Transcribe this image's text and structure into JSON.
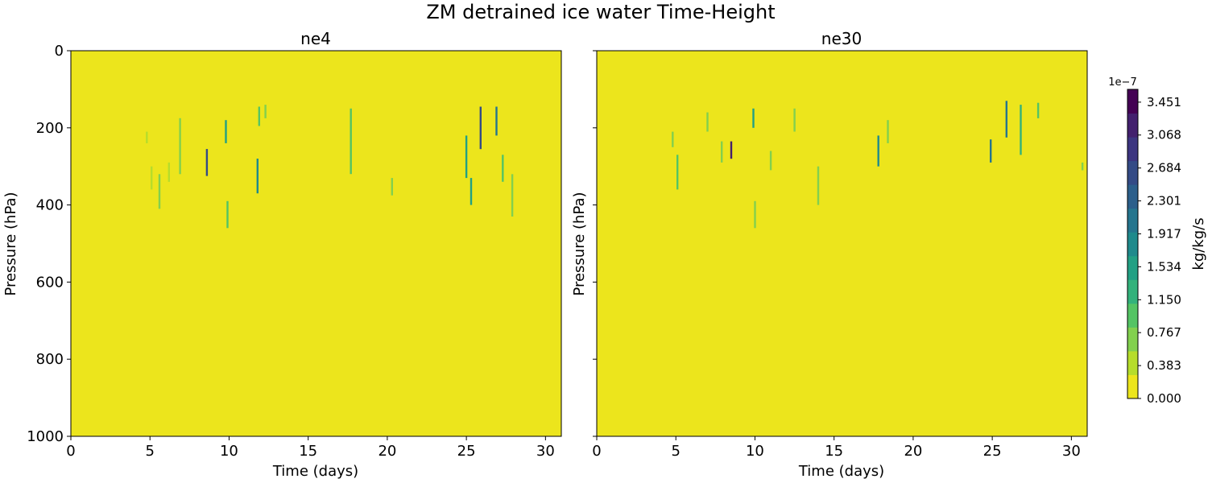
{
  "chart_data": {
    "type": "heatmap",
    "title": "ZM detrained ice water Time-Height",
    "panels": [
      {
        "title": "ne4",
        "xlabel": "Time (days)",
        "ylabel": "Pressure (hPa)",
        "xlim": [
          0,
          31
        ],
        "ylim": [
          1000,
          0
        ],
        "xticks": [
          "0",
          "5",
          "10",
          "15",
          "20",
          "25",
          "30"
        ],
        "yticks": [
          "0",
          "200",
          "400",
          "600",
          "800",
          "1000"
        ],
        "features": [
          {
            "day": 4.8,
            "p_top": 210,
            "p_bot": 240,
            "v": 0.4
          },
          {
            "day": 5.1,
            "p_top": 300,
            "p_bot": 360,
            "v": 0.5
          },
          {
            "day": 5.6,
            "p_top": 320,
            "p_bot": 410,
            "v": 0.6
          },
          {
            "day": 6.2,
            "p_top": 290,
            "p_bot": 340,
            "v": 0.4
          },
          {
            "day": 6.9,
            "p_top": 175,
            "p_bot": 320,
            "v": 0.8
          },
          {
            "day": 8.6,
            "p_top": 255,
            "p_bot": 325,
            "v": 2.7
          },
          {
            "day": 9.8,
            "p_top": 180,
            "p_bot": 240,
            "v": 1.4
          },
          {
            "day": 9.9,
            "p_top": 390,
            "p_bot": 460,
            "v": 1.0
          },
          {
            "day": 11.9,
            "p_top": 145,
            "p_bot": 195,
            "v": 0.9
          },
          {
            "day": 11.8,
            "p_top": 280,
            "p_bot": 370,
            "v": 1.8
          },
          {
            "day": 12.3,
            "p_top": 140,
            "p_bot": 175,
            "v": 0.7
          },
          {
            "day": 17.7,
            "p_top": 150,
            "p_bot": 320,
            "v": 1.1
          },
          {
            "day": 20.3,
            "p_top": 330,
            "p_bot": 375,
            "v": 0.8
          },
          {
            "day": 25.0,
            "p_top": 220,
            "p_bot": 330,
            "v": 1.6
          },
          {
            "day": 25.3,
            "p_top": 330,
            "p_bot": 400,
            "v": 1.4
          },
          {
            "day": 25.9,
            "p_top": 145,
            "p_bot": 255,
            "v": 2.5
          },
          {
            "day": 26.9,
            "p_top": 145,
            "p_bot": 220,
            "v": 2.0
          },
          {
            "day": 27.3,
            "p_top": 270,
            "p_bot": 340,
            "v": 1.0
          },
          {
            "day": 27.9,
            "p_top": 320,
            "p_bot": 430,
            "v": 0.8
          }
        ]
      },
      {
        "title": "ne30",
        "xlabel": "Time (days)",
        "ylabel": "Pressure (hPa)",
        "xlim": [
          0,
          31
        ],
        "ylim": [
          1000,
          0
        ],
        "xticks": [
          "0",
          "5",
          "10",
          "15",
          "20",
          "25",
          "30"
        ],
        "yticks": [
          "0",
          "200",
          "400",
          "600",
          "800",
          "1000"
        ],
        "features": [
          {
            "day": 4.8,
            "p_top": 210,
            "p_bot": 250,
            "v": 0.6
          },
          {
            "day": 5.1,
            "p_top": 270,
            "p_bot": 360,
            "v": 0.9
          },
          {
            "day": 7.0,
            "p_top": 160,
            "p_bot": 210,
            "v": 0.6
          },
          {
            "day": 7.9,
            "p_top": 235,
            "p_bot": 290,
            "v": 0.8
          },
          {
            "day": 8.5,
            "p_top": 235,
            "p_bot": 280,
            "v": 3.2
          },
          {
            "day": 9.9,
            "p_top": 150,
            "p_bot": 200,
            "v": 1.4
          },
          {
            "day": 10.0,
            "p_top": 390,
            "p_bot": 460,
            "v": 0.8
          },
          {
            "day": 11.0,
            "p_top": 260,
            "p_bot": 310,
            "v": 0.6
          },
          {
            "day": 12.5,
            "p_top": 150,
            "p_bot": 210,
            "v": 0.7
          },
          {
            "day": 14.0,
            "p_top": 300,
            "p_bot": 400,
            "v": 0.6
          },
          {
            "day": 17.8,
            "p_top": 220,
            "p_bot": 300,
            "v": 1.9
          },
          {
            "day": 18.4,
            "p_top": 180,
            "p_bot": 240,
            "v": 0.6
          },
          {
            "day": 24.9,
            "p_top": 230,
            "p_bot": 290,
            "v": 2.1
          },
          {
            "day": 25.9,
            "p_top": 130,
            "p_bot": 225,
            "v": 2.2
          },
          {
            "day": 26.8,
            "p_top": 140,
            "p_bot": 270,
            "v": 1.2
          },
          {
            "day": 27.9,
            "p_top": 135,
            "p_bot": 175,
            "v": 1.0
          },
          {
            "day": 30.7,
            "p_top": 290,
            "p_bot": 310,
            "v": 0.8
          }
        ]
      }
    ],
    "colorbar": {
      "label": "kg/kg/s",
      "exponent": "1e−7",
      "vmin": 0,
      "vmax": 3.6,
      "ticks": [
        "0.000",
        "0.383",
        "0.767",
        "1.150",
        "1.534",
        "1.917",
        "2.301",
        "2.684",
        "3.068",
        "3.451"
      ],
      "colors": [
        "#ece51c",
        "#b6dd2b",
        "#82d04e",
        "#54c464",
        "#33b27b",
        "#22a084",
        "#1f8a8c",
        "#25758e",
        "#2c5f8b",
        "#344b86",
        "#3c3580",
        "#43206e",
        "#440154"
      ]
    }
  }
}
